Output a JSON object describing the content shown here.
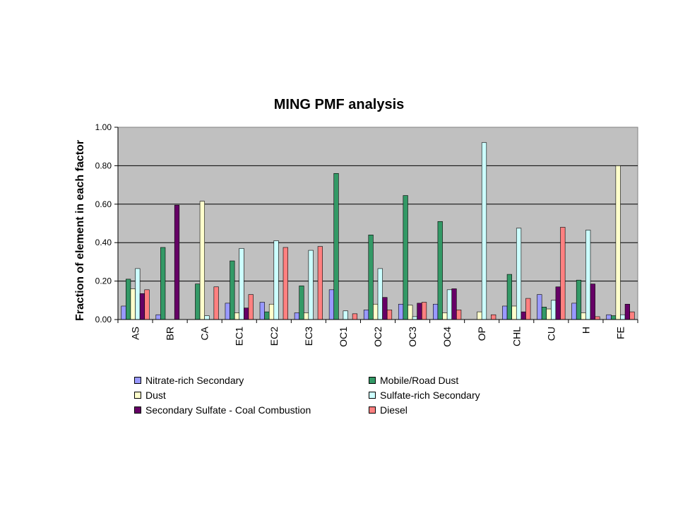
{
  "chart_data": {
    "type": "bar",
    "title": "MING PMF analysis",
    "ylabel": "Fraction of element in each factor",
    "xlabel": "",
    "ylim": [
      0,
      1
    ],
    "yticks": [
      "0.00",
      "0.20",
      "0.40",
      "0.60",
      "0.80",
      "1.00"
    ],
    "ytick_values": [
      0,
      0.2,
      0.4,
      0.6,
      0.8,
      1.0
    ],
    "grid": true,
    "legend_position": "bottom",
    "background": "#c0c0c0",
    "categories": [
      "AS",
      "BR",
      "CA",
      "EC1",
      "EC2",
      "EC3",
      "OC1",
      "OC2",
      "OC3",
      "OC4",
      "OP",
      "CHL",
      "CU",
      "H",
      "FE"
    ],
    "series": [
      {
        "name": "Nitrate-rich Secondary",
        "color": "#9999ff",
        "values": [
          0.07,
          0.025,
          0.0,
          0.085,
          0.09,
          0.035,
          0.155,
          0.05,
          0.08,
          0.08,
          0.0,
          0.07,
          0.13,
          0.085,
          0.025
        ]
      },
      {
        "name": "Mobile/Road Dust",
        "color": "#339966",
        "values": [
          0.21,
          0.375,
          0.185,
          0.305,
          0.04,
          0.175,
          0.76,
          0.44,
          0.645,
          0.51,
          0.0,
          0.235,
          0.065,
          0.205,
          0.02
        ]
      },
      {
        "name": "Dust",
        "color": "#ffffcc",
        "values": [
          0.16,
          0.0,
          0.615,
          0.035,
          0.08,
          0.035,
          0.0,
          0.08,
          0.075,
          0.035,
          0.04,
          0.07,
          0.055,
          0.035,
          0.8
        ]
      },
      {
        "name": "Sulfate-rich Secondary",
        "color": "#ccffff",
        "values": [
          0.265,
          0.0,
          0.02,
          0.37,
          0.41,
          0.36,
          0.045,
          0.265,
          0.015,
          0.155,
          0.92,
          0.475,
          0.1,
          0.465,
          0.025
        ]
      },
      {
        "name": "Secondary Sulfate - Coal Combustion",
        "color": "#660066",
        "values": [
          0.135,
          0.595,
          0.0,
          0.06,
          0.0,
          0.0,
          0.0,
          0.115,
          0.085,
          0.16,
          0.0,
          0.04,
          0.17,
          0.185,
          0.08
        ]
      },
      {
        "name": "Diesel",
        "color": "#ff8080",
        "values": [
          0.155,
          0.0,
          0.17,
          0.13,
          0.375,
          0.38,
          0.03,
          0.05,
          0.09,
          0.05,
          0.025,
          0.11,
          0.48,
          0.015,
          0.04
        ]
      }
    ]
  }
}
